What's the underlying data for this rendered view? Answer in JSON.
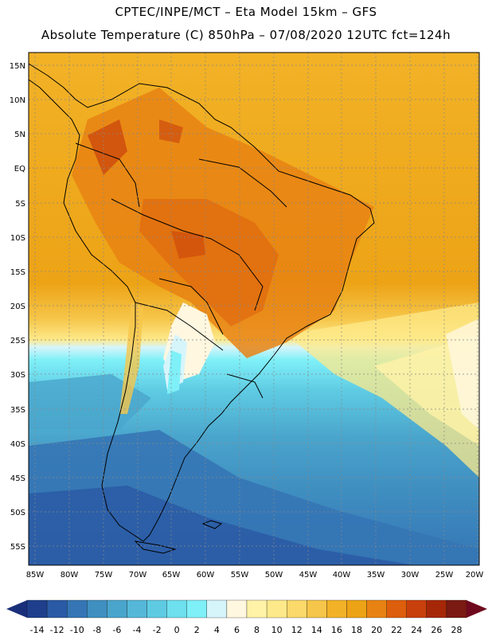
{
  "header": {
    "line1": "CPTEC/INPE/MCT –  Eta Model 15km – GFS",
    "line2": "Absolute Temperature (C) 850hPa – 07/08/2020 12UTC fct=124h"
  },
  "map": {
    "lat_labels": [
      "15N",
      "10N",
      "5N",
      "EQ",
      "5S",
      "10S",
      "15S",
      "20S",
      "25S",
      "30S",
      "35S",
      "40S",
      "45S",
      "50S",
      "55S"
    ],
    "lon_labels": [
      "85W",
      "80W",
      "75W",
      "70W",
      "65W",
      "60W",
      "55W",
      "50W",
      "45W",
      "40W",
      "35W",
      "30W",
      "25W",
      "20W"
    ],
    "grid_lines": "dotted"
  },
  "colorbar": {
    "labels": [
      "-14",
      "-12",
      "-10",
      "-8",
      "-6",
      "-4",
      "-2",
      "0",
      "2",
      "4",
      "6",
      "8",
      "10",
      "12",
      "14",
      "16",
      "18",
      "20",
      "22",
      "24",
      "26",
      "28"
    ],
    "colors": [
      "#1f3f8c",
      "#2a5aa5",
      "#3575b5",
      "#3f8fc1",
      "#4aa5cc",
      "#55b8d8",
      "#5fcbe3",
      "#6ee0ee",
      "#7ff0f8",
      "#d6f5fb",
      "#fff7e0",
      "#fff3a8",
      "#fde98a",
      "#fbd96a",
      "#f6c64a",
      "#f2b227",
      "#eda316",
      "#e88313",
      "#dd5e0c",
      "#c8400b",
      "#a52708",
      "#7a1a12"
    ],
    "low_arrow_color": "#1a2f7a",
    "high_arrow_color": "#6f0a1e"
  }
}
